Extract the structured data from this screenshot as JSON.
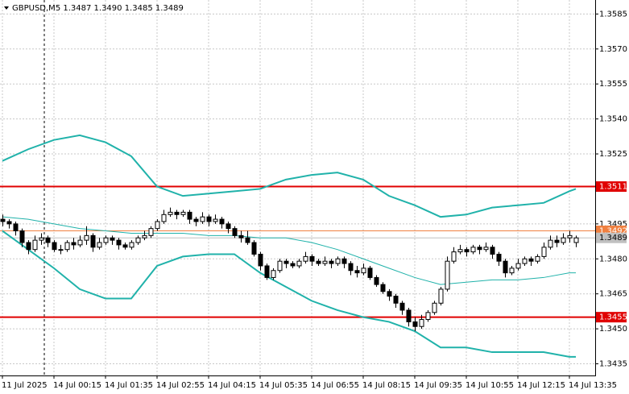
{
  "chart_data": {
    "type": "candlestick",
    "title": "GBPUSD,M5  1.3487 1.3490 1.3485 1.3489",
    "ylim": [
      1.343,
      1.3591
    ],
    "yticks": [
      1.3585,
      {
        "value": 1.357,
        "label": "1.3570"
      },
      1.3555,
      {
        "value": 1.354,
        "label": "1.3540"
      },
      1.3525,
      1.3495,
      {
        "value": 1.348,
        "label": "1.3480"
      },
      1.3465,
      {
        "value": 1.345,
        "label": "1.3450"
      },
      1.3435
    ],
    "grid": true,
    "up_color": "#ffffff",
    "down_color": "#000000",
    "categories": [
      "11 Jul 2025",
      null,
      null,
      null,
      null,
      null,
      null,
      null,
      "14 Jul 00:15",
      null,
      null,
      null,
      null,
      null,
      null,
      null,
      "14 Jul 01:35",
      null,
      null,
      null,
      null,
      null,
      null,
      null,
      "14 Jul 02:55",
      null,
      null,
      null,
      null,
      null,
      null,
      null,
      "14 Jul 04:15",
      null,
      null,
      null,
      null,
      null,
      null,
      null,
      "14 Jul 05:35",
      null,
      null,
      null,
      null,
      null,
      null,
      null,
      "14 Jul 06:55",
      null,
      null,
      null,
      null,
      null,
      null,
      null,
      "14 Jul 08:15",
      null,
      null,
      null,
      null,
      null,
      null,
      null,
      "14 Jul 09:35",
      null,
      null,
      null,
      null,
      null,
      null,
      null,
      "14 Jul 10:55",
      null,
      null,
      null,
      null,
      null,
      null,
      null,
      "14 Jul 12:15",
      null,
      null,
      null,
      null,
      null,
      null,
      null,
      "14 Jul 13:35",
      null
    ],
    "ohlc": [
      [
        1.3497,
        1.3499,
        1.3494,
        1.3496
      ],
      [
        1.3496,
        1.3497,
        1.3493,
        1.3495
      ],
      [
        1.3495,
        1.3496,
        1.349,
        1.3492
      ],
      [
        1.3492,
        1.3493,
        1.3485,
        1.3487
      ],
      [
        1.3487,
        1.3488,
        1.3482,
        1.3484
      ],
      [
        1.3484,
        1.349,
        1.3483,
        1.3488
      ],
      [
        1.3488,
        1.3491,
        1.3486,
        1.3489
      ],
      [
        1.3489,
        1.349,
        1.3485,
        1.3487
      ],
      [
        1.3487,
        1.3488,
        1.3483,
        1.3484
      ],
      [
        1.3484,
        1.3486,
        1.3482,
        1.3484
      ],
      [
        1.3484,
        1.3488,
        1.3483,
        1.3487
      ],
      [
        1.3487,
        1.3489,
        1.3484,
        1.3486
      ],
      [
        1.3486,
        1.349,
        1.3485,
        1.3488
      ],
      [
        1.3488,
        1.3494,
        1.3486,
        1.349
      ],
      [
        1.349,
        1.3491,
        1.3483,
        1.3485
      ],
      [
        1.3485,
        1.3489,
        1.3484,
        1.3487
      ],
      [
        1.3487,
        1.349,
        1.3486,
        1.3489
      ],
      [
        1.3489,
        1.349,
        1.3486,
        1.3488
      ],
      [
        1.3488,
        1.3489,
        1.3484,
        1.3486
      ],
      [
        1.3486,
        1.3487,
        1.3484,
        1.3485
      ],
      [
        1.3485,
        1.3488,
        1.3484,
        1.3487
      ],
      [
        1.3487,
        1.349,
        1.3486,
        1.3489
      ],
      [
        1.3489,
        1.3492,
        1.3488,
        1.349
      ],
      [
        1.349,
        1.3494,
        1.3489,
        1.3493
      ],
      [
        1.3493,
        1.3497,
        1.3492,
        1.3496
      ],
      [
        1.3496,
        1.3501,
        1.3495,
        1.3499
      ],
      [
        1.3499,
        1.3502,
        1.3498,
        1.35
      ],
      [
        1.35,
        1.3501,
        1.3497,
        1.3499
      ],
      [
        1.3499,
        1.3501,
        1.3498,
        1.35
      ],
      [
        1.35,
        1.3501,
        1.3495,
        1.3497
      ],
      [
        1.3497,
        1.3498,
        1.3494,
        1.3496
      ],
      [
        1.3496,
        1.35,
        1.3495,
        1.3498
      ],
      [
        1.3498,
        1.3499,
        1.3494,
        1.3496
      ],
      [
        1.3496,
        1.3499,
        1.3495,
        1.3497
      ],
      [
        1.3497,
        1.3498,
        1.3493,
        1.3495
      ],
      [
        1.3495,
        1.3496,
        1.3491,
        1.3493
      ],
      [
        1.3493,
        1.3494,
        1.3489,
        1.349
      ],
      [
        1.349,
        1.3492,
        1.3487,
        1.3489
      ],
      [
        1.3489,
        1.3492,
        1.3486,
        1.3487
      ],
      [
        1.3487,
        1.3488,
        1.3481,
        1.3482
      ],
      [
        1.3482,
        1.3483,
        1.3475,
        1.3477
      ],
      [
        1.3477,
        1.3478,
        1.3471,
        1.3472
      ],
      [
        1.3472,
        1.3476,
        1.3471,
        1.3475
      ],
      [
        1.3475,
        1.348,
        1.3474,
        1.3479
      ],
      [
        1.3479,
        1.348,
        1.3476,
        1.3478
      ],
      [
        1.3478,
        1.3479,
        1.3476,
        1.3477
      ],
      [
        1.3477,
        1.348,
        1.3476,
        1.3479
      ],
      [
        1.3479,
        1.3483,
        1.3478,
        1.3481
      ],
      [
        1.3481,
        1.3482,
        1.3477,
        1.3479
      ],
      [
        1.3479,
        1.348,
        1.3477,
        1.3478
      ],
      [
        1.3478,
        1.3481,
        1.3477,
        1.3479
      ],
      [
        1.3479,
        1.348,
        1.3476,
        1.3478
      ],
      [
        1.3478,
        1.3481,
        1.3477,
        1.348
      ],
      [
        1.348,
        1.3481,
        1.3476,
        1.3478
      ],
      [
        1.3478,
        1.3479,
        1.3473,
        1.3475
      ],
      [
        1.3475,
        1.3477,
        1.3472,
        1.3474
      ],
      [
        1.3474,
        1.3478,
        1.3473,
        1.3476
      ],
      [
        1.3476,
        1.3477,
        1.3471,
        1.3472
      ],
      [
        1.3472,
        1.3473,
        1.3468,
        1.3469
      ],
      [
        1.3469,
        1.347,
        1.3465,
        1.3466
      ],
      [
        1.3466,
        1.3467,
        1.3462,
        1.3464
      ],
      [
        1.3464,
        1.3465,
        1.3459,
        1.3461
      ],
      [
        1.3461,
        1.3462,
        1.3456,
        1.3458
      ],
      [
        1.3458,
        1.3459,
        1.3451,
        1.3453
      ],
      [
        1.3453,
        1.3455,
        1.3449,
        1.3451
      ],
      [
        1.3451,
        1.3456,
        1.345,
        1.3454
      ],
      [
        1.3454,
        1.3458,
        1.3453,
        1.3457
      ],
      [
        1.3457,
        1.3462,
        1.3456,
        1.3461
      ],
      [
        1.3461,
        1.3468,
        1.346,
        1.3467
      ],
      [
        1.3467,
        1.3481,
        1.3466,
        1.3479
      ],
      [
        1.3479,
        1.3485,
        1.3478,
        1.3483
      ],
      [
        1.3483,
        1.3486,
        1.3482,
        1.3484
      ],
      [
        1.3484,
        1.3485,
        1.3481,
        1.3483
      ],
      [
        1.3483,
        1.3486,
        1.3482,
        1.3485
      ],
      [
        1.3485,
        1.3486,
        1.3482,
        1.3484
      ],
      [
        1.3484,
        1.3487,
        1.3483,
        1.3485
      ],
      [
        1.3485,
        1.3486,
        1.348,
        1.3482
      ],
      [
        1.3482,
        1.3483,
        1.3477,
        1.3479
      ],
      [
        1.3479,
        1.348,
        1.3472,
        1.3474
      ],
      [
        1.3474,
        1.3477,
        1.3473,
        1.3476
      ],
      [
        1.3476,
        1.348,
        1.3475,
        1.3478
      ],
      [
        1.3478,
        1.3481,
        1.3477,
        1.348
      ],
      [
        1.348,
        1.3481,
        1.3477,
        1.3479
      ],
      [
        1.3479,
        1.3482,
        1.3478,
        1.3481
      ],
      [
        1.3481,
        1.3487,
        1.348,
        1.3485
      ],
      [
        1.3485,
        1.349,
        1.3484,
        1.3488
      ],
      [
        1.3488,
        1.349,
        1.3485,
        1.3487
      ],
      [
        1.3487,
        1.3491,
        1.3486,
        1.3489
      ],
      [
        1.3489,
        1.3492,
        1.3487,
        1.349
      ],
      [
        1.3487,
        1.349,
        1.3485,
        1.3489
      ]
    ],
    "lines": [
      {
        "color": "#20b2aa",
        "width": 2,
        "x": [
          0,
          4,
          8,
          12,
          16,
          20,
          24,
          28,
          32,
          36,
          40,
          44,
          48,
          52,
          56,
          60,
          64,
          68,
          72,
          76,
          80,
          84,
          88,
          89
        ],
        "values": [
          1.3522,
          1.3527,
          1.3531,
          1.3533,
          1.353,
          1.3524,
          1.3511,
          1.3507,
          1.3508,
          1.3509,
          1.351,
          1.3514,
          1.3516,
          1.3517,
          1.3514,
          1.3507,
          1.3503,
          1.3498,
          1.3499,
          1.3502,
          1.3503,
          1.3504,
          1.3509,
          1.351
        ]
      },
      {
        "color": "#20b2aa",
        "width": 1,
        "x": [
          0,
          4,
          8,
          12,
          16,
          20,
          24,
          28,
          32,
          36,
          40,
          44,
          48,
          52,
          56,
          60,
          64,
          68,
          72,
          76,
          80,
          84,
          88,
          89
        ],
        "values": [
          1.3498,
          1.3497,
          1.3495,
          1.3493,
          1.3492,
          1.3491,
          1.3491,
          1.3491,
          1.349,
          1.349,
          1.3489,
          1.3489,
          1.3487,
          1.3484,
          1.348,
          1.3476,
          1.3472,
          1.3469,
          1.347,
          1.3471,
          1.3471,
          1.3472,
          1.3474,
          1.3474
        ]
      },
      {
        "color": "#20b2aa",
        "width": 2,
        "x": [
          0,
          4,
          8,
          12,
          16,
          20,
          24,
          28,
          32,
          36,
          40,
          44,
          48,
          52,
          56,
          60,
          64,
          68,
          72,
          76,
          80,
          84,
          88,
          89
        ],
        "values": [
          1.3492,
          1.3484,
          1.3476,
          1.3467,
          1.3463,
          1.3463,
          1.3477,
          1.3481,
          1.3482,
          1.3482,
          1.3474,
          1.3468,
          1.3462,
          1.3458,
          1.3455,
          1.3453,
          1.3449,
          1.3442,
          1.3442,
          1.344,
          1.344,
          1.344,
          1.3438,
          1.3438
        ]
      }
    ],
    "levels": [
      {
        "value": 1.3511,
        "color": "#e00000",
        "text_color": "#ffffff",
        "width": 2
      },
      {
        "value": 1.3455,
        "color": "#e00000",
        "text_color": "#ffffff",
        "width": 2
      },
      {
        "value": 1.3492,
        "color": "#f08040",
        "text_color": "#ffffff",
        "width": 1
      },
      {
        "value": 1.3489,
        "color": "#c0c0c0",
        "text_color": "#000000",
        "width": 1
      }
    ]
  }
}
